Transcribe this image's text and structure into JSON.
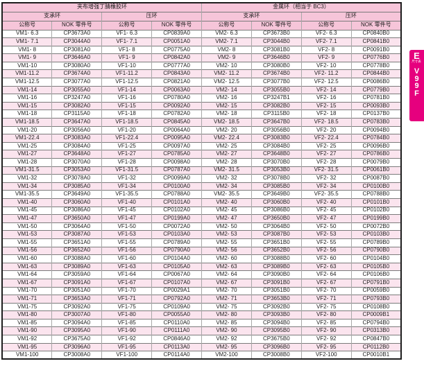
{
  "colors": {
    "header_pink": "#F6C5D9",
    "row_pink": "#FBE4EE",
    "tab_magenta": "#E6007E"
  },
  "side_tab": {
    "letter": "E",
    "sublabel": "尺寸表",
    "code_chars": [
      "V",
      "9",
      "9",
      "F"
    ]
  },
  "table": {
    "group_headers": [
      "夹布增强丁腈橡胶环",
      "金属环（相当于 BC3）"
    ],
    "sub_headers": [
      "支承环",
      "压环",
      "支承环",
      "压环"
    ],
    "col_headers": [
      "公称号",
      "NOK 零件号",
      "公称号",
      "NOK 零件号",
      "公称号",
      "NOK 零件号",
      "公称号",
      "NOK 零件号"
    ],
    "rows": [
      [
        "VM1- 6.3",
        "CP3673A0",
        "VF1- 6.3",
        "CP0839A0",
        "VM2- 6.3",
        "CP3673B0",
        "VF2- 6.3",
        "CP0840B0"
      ],
      [
        "VM1- 7.1",
        "CP3044A0",
        "VF1- 7.1",
        "CP0051A0",
        "VM2- 7.1",
        "CP3044B0",
        "VF2- 7.1",
        "CP0841B0"
      ],
      [
        "VM1- 8",
        "CP3081A0",
        "VF1- 8",
        "CP0775A0",
        "VM2- 8",
        "CP3081B0",
        "VF2- 8",
        "CP0091B0"
      ],
      [
        "VM1- 9",
        "CP3646A0",
        "VF1- 9",
        "CP0842A0",
        "VM2- 9",
        "CP3646B0",
        "VF2- 9",
        "CP0776B0"
      ],
      [
        "VM1-10",
        "CP3080A0",
        "VF1-10",
        "CP0777A0",
        "VM2- 10",
        "CP3080B0",
        "VF2- 10",
        "CP0778B0"
      ],
      [
        "VM1-11.2",
        "CP3674A0",
        "VF1-11.2",
        "CP0843A0",
        "VM2- 11.2",
        "CP3674B0",
        "VF2- 11.2",
        "CP0844B0"
      ],
      [
        "VM1-12.5",
        "CP3077A0",
        "VF1-12.5",
        "CP0821A0",
        "VM2- 12.5",
        "CP3077B0",
        "VF2- 12.5",
        "CP0086B0"
      ],
      [
        "VM1-14",
        "CP3055A0",
        "VF1-14",
        "CP0063A0",
        "VM2- 14",
        "CP3055B0",
        "VF2- 14",
        "CP0779B0"
      ],
      [
        "VM1-16",
        "CP3247A0",
        "VF1-16",
        "CP0780A0",
        "VM2- 16",
        "CP3247B1",
        "VF2- 16",
        "CP0781B0"
      ],
      [
        "VM1-15",
        "CP3082A0",
        "VF1-15",
        "CP0092A0",
        "VM2- 15",
        "CP3082B0",
        "VF2- 15",
        "CP0093B0"
      ],
      [
        "VM1-18",
        "CP3115A0",
        "VF1-18",
        "CP0782A0",
        "VM2- 18",
        "CP3115B0",
        "VF2- 18",
        "CP0137B0"
      ],
      [
        "VM1-18.5",
        "CP3647A0",
        "VF1-18.5",
        "CP0845A0",
        "VM2- 18.5",
        "CP3647B0",
        "VF2- 18.5",
        "CP0783B0"
      ],
      [
        "VM1-20",
        "CP3056A0",
        "VF1-20",
        "CP0064A0",
        "VM2- 20",
        "CP3056B0",
        "VF2- 20",
        "CP0094B0"
      ],
      [
        "VM1-22.4",
        "CP3083A0",
        "VF1-22.4",
        "CP0095A0",
        "VM2- 22.4",
        "CP3083B0",
        "VF2- 22.4",
        "CP0784B0"
      ],
      [
        "VM1-25",
        "CP3084A0",
        "VF1-25",
        "CP0097A0",
        "VM2- 25",
        "CP3084B0",
        "VF2- 25",
        "CP0096B0"
      ],
      [
        "VM1-27",
        "CP3648A0",
        "VF1-27",
        "CP0785A0",
        "VM2- 27",
        "CP3648B0",
        "VF2- 27",
        "CP0786B0"
      ],
      [
        "VM1-28",
        "CP3070A0",
        "VF1-28",
        "CP0098A0",
        "VM2- 28",
        "CP3070B0",
        "VF2- 28",
        "CP0079B0"
      ],
      [
        "VM1-31.5",
        "CP3053A0",
        "VF1-31.5",
        "CP0787A0",
        "VM2- 31.5",
        "CP3053B0",
        "VF2- 31.5",
        "CP0061B0"
      ],
      [
        "VM1-32",
        "CP3078A0",
        "VF1-32",
        "CP0099A0",
        "VM2- 32",
        "CP3078B0",
        "VF2- 32",
        "CP0087B0"
      ],
      [
        "VM1-34",
        "CP3085A0",
        "VF1-34",
        "CP0100A0",
        "VM2- 34",
        "CP3085B0",
        "VF2- 34",
        "CP0100B0"
      ],
      [
        "VM1-35.5",
        "CP3649A0",
        "VF1-35.5",
        "CP0788A0",
        "VM2- 35.5",
        "CP3649B0",
        "VF2- 35.5",
        "CP0788B0"
      ],
      [
        "VM1-40",
        "CP3060A0",
        "VF1-40",
        "CP0101A0",
        "VM2- 40",
        "CP3060B0",
        "VF2- 40",
        "CP0101B0"
      ],
      [
        "VM1-45",
        "CP3086A0",
        "VF1-45",
        "CP0102A0",
        "VM2- 45",
        "CP3086B0",
        "VF2- 45",
        "CP0102B0"
      ],
      [
        "VM1-47",
        "CP3650A0",
        "VF1-47",
        "CP0199A0",
        "VM2- 47",
        "CP3650B0",
        "VF2- 47",
        "CP0199B0"
      ],
      [
        "VM1-50",
        "CP3064A0",
        "VF1-50",
        "CP0072A0",
        "VM2- 50",
        "CP3064B0",
        "VF2- 50",
        "CP0072B0"
      ],
      [
        "VM1-53",
        "CP3087A0",
        "VF1-53",
        "CP0103A0",
        "VM2- 53",
        "CP3087B0",
        "VF2- 53",
        "CP0103B0"
      ],
      [
        "VM1-55",
        "CP3651A0",
        "VF1-55",
        "CP0789A0",
        "VM2- 55",
        "CP3651B0",
        "VF2- 55",
        "CP0789B0"
      ],
      [
        "VM1-56",
        "CP3652A0",
        "VF1-56",
        "CP0790A0",
        "VM2- 56",
        "CP3652B0",
        "VF2- 56",
        "CP0790B0"
      ],
      [
        "VM1-60",
        "CP3088A0",
        "VF1-60",
        "CP0104A0",
        "VM2- 60",
        "CP3088B0",
        "VF2- 60",
        "CP0104B0"
      ],
      [
        "VM1-63",
        "CP3089A0",
        "VF1-63",
        "CP0105A0",
        "VM2- 63",
        "CP3089B0",
        "VF2- 63",
        "CP0105B0"
      ],
      [
        "VM1-64",
        "CP3059A0",
        "VF1-64",
        "CP0067A0",
        "VM2- 64",
        "CP3090B0",
        "VF2- 64",
        "CP0106B0"
      ],
      [
        "VM1-67",
        "CP3091A0",
        "VF1-67",
        "CP0107A0",
        "VM2- 67",
        "CP3091B0",
        "VF2- 67",
        "CP0791B0"
      ],
      [
        "VM1-70",
        "CP3051A0",
        "VF1-70",
        "CP0029A1",
        "VM2- 70",
        "CP3051B0",
        "VF2- 70",
        "CP0059B0"
      ],
      [
        "VM1-71",
        "CP3653A0",
        "VF1-71",
        "CP0792A0",
        "VM2- 71",
        "CP3653B0",
        "VF2- 71",
        "CP0793B0"
      ],
      [
        "VM1-75",
        "CP3092A0",
        "VF1-75",
        "CP0109A0",
        "VM2- 75",
        "CP3092B0",
        "VF2- 75",
        "CP0108B0"
      ],
      [
        "VM1-80",
        "CP3007A0",
        "VF1-80",
        "CP0055A0",
        "VM2- 80",
        "CP3093B0",
        "VF2- 80",
        "CP0009B1"
      ],
      [
        "VM1-85",
        "CP3094A0",
        "VF1-85",
        "CP0110A0",
        "VM2- 85",
        "CP3094B0",
        "VF2- 85",
        "CP0794B0"
      ],
      [
        "VM1-90",
        "CP3095A0",
        "VF1-90",
        "CP0111A0",
        "VM2- 90",
        "CP3095B0",
        "VF2- 90",
        "CP0313B0"
      ],
      [
        "VM1-92",
        "CP3675A0",
        "VF1-92",
        "CP0846A0",
        "VM2- 92",
        "CP3675B0",
        "VF2- 92",
        "CP0847B0"
      ],
      [
        "VM1-95",
        "CP3096A0",
        "VF1-95",
        "CP0113A0",
        "VM2- 95",
        "CP3096B0",
        "VF2- 95",
        "CP0112B0"
      ],
      [
        "VM1-100",
        "CP3008A0",
        "VF1-100",
        "CP0114A0",
        "VM2-100",
        "CP3008B0",
        "VF2-100",
        "CP0010B1"
      ]
    ]
  }
}
